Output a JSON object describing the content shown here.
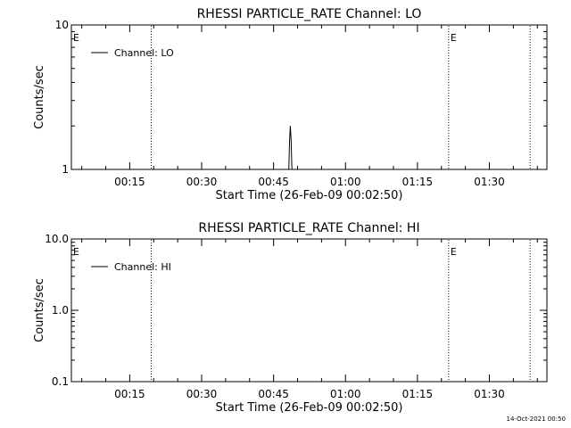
{
  "chart_data": [
    {
      "type": "line",
      "title": "RHESSI PARTICLE_RATE Channel: LO",
      "xlabel": "Start Time (26-Feb-09 00:02:50)",
      "ylabel": "Counts/sec",
      "yscale": "log",
      "xlim": [
        "00:02:50",
        "01:42:00"
      ],
      "ylim": [
        1,
        10
      ],
      "x_ticks": [
        "00:15",
        "00:30",
        "00:45",
        "01:00",
        "01:15",
        "01:30"
      ],
      "y_ticks": [
        "1",
        "10"
      ],
      "legend": {
        "label": "Channel: LO",
        "position": "top-left"
      },
      "vlines": [
        {
          "x": "00:19:30",
          "label": ""
        },
        {
          "x": "01:21:30",
          "label": "E"
        },
        {
          "x": "01:38:30",
          "label": ""
        }
      ],
      "edge_label": "E",
      "series": [
        {
          "name": "Channel: LO",
          "x": [
            "00:48:10",
            "00:48:20",
            "00:48:30",
            "00:48:40",
            "00:48:50",
            "00:49:00"
          ],
          "values": [
            1,
            1.6,
            2,
            1.6,
            1,
            1
          ]
        }
      ]
    },
    {
      "type": "line",
      "title": "RHESSI PARTICLE_RATE Channel: HI",
      "xlabel": "Start Time (26-Feb-09 00:02:50)",
      "ylabel": "Counts/sec",
      "yscale": "log",
      "xlim": [
        "00:02:50",
        "01:42:00"
      ],
      "ylim": [
        0.1,
        10
      ],
      "x_ticks": [
        "00:15",
        "00:30",
        "00:45",
        "01:00",
        "01:15",
        "01:30"
      ],
      "y_ticks": [
        "0.1",
        "1.0",
        "10.0"
      ],
      "legend": {
        "label": "Channel: HI",
        "position": "top-left"
      },
      "vlines": [
        {
          "x": "00:19:30",
          "label": ""
        },
        {
          "x": "01:21:30",
          "label": "E"
        },
        {
          "x": "01:38:30",
          "label": ""
        }
      ],
      "edge_label": "E",
      "series": [
        {
          "name": "Channel: HI",
          "x": [],
          "values": []
        }
      ]
    }
  ],
  "footer": {
    "timestamp": "14-Oct-2021 00:50"
  }
}
